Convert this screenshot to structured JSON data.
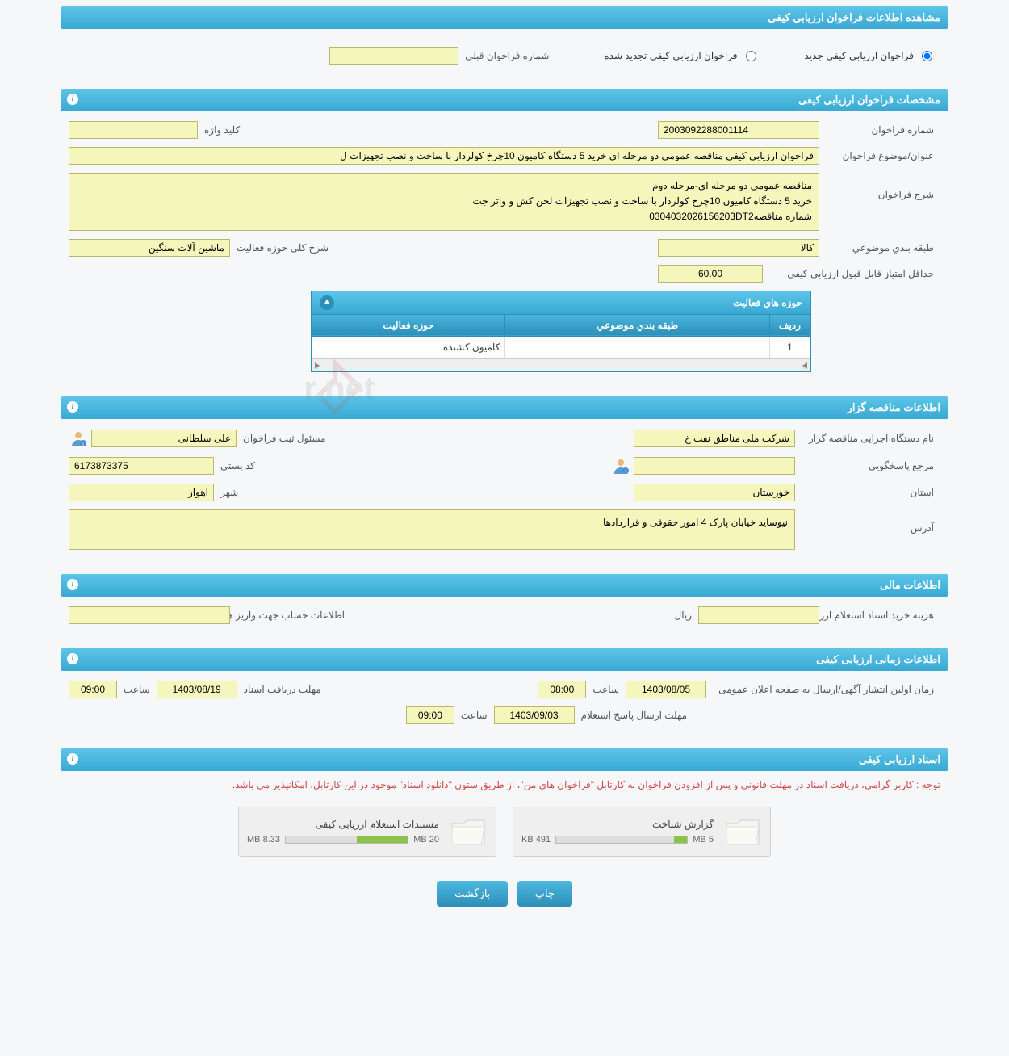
{
  "page_title": "مشاهده اطلاعات فراخوان ارزیابی کیفی",
  "radio_options": {
    "new": "فراخوان ارزیابی کیفی جدید",
    "renewed": "فراخوان ارزیابی کیفی تجدید شده",
    "previous_label": "شماره فراخوان قبلی",
    "previous_value": ""
  },
  "specs": {
    "header": "مشخصات فراخوان ارزیابی کیفی",
    "number_label": "شماره فراخوان",
    "number": "2003092288001114",
    "keyword_label": "کلید واژه",
    "keyword": "",
    "title_label": "عنوان/موضوع فراخوان",
    "title": "فراخوان ارزيابي كيفي مناقصه عمومي دو مرحله اي خريد 5 دستگاه كاميون 10چرخ كولردار با ساخت و نصب تجهيزات ل",
    "desc_label": "شرح فراخوان",
    "desc": "مناقصه عمومي دو مرحله اي-مرحله دوم\nخريد 5 دستگاه كاميون 10چرخ كولردار با ساخت و نصب تجهيزات لجن كش و واتر جت\nشماره مناقصه0304032026156203DT2",
    "category_label": "طبقه بندي موضوعي",
    "category": "کالا",
    "activity_scope_label": "شرح کلی حوزه فعالیت",
    "activity_scope": "ماشین آلات سنگین",
    "min_score_label": "حداقل امتیاز قابل قبول ارزیابی کیفی",
    "min_score": "60.00"
  },
  "activity_table": {
    "header": "حوزه هاي فعاليت",
    "columns": {
      "row": "ردیف",
      "category": "طبقه بندي موضوعي",
      "activity": "حوزه فعاليت"
    },
    "rows": [
      {
        "num": "1",
        "category": "",
        "activity": "كاميون كشنده"
      }
    ]
  },
  "organizer": {
    "header": "اطلاعات مناقصه گزار",
    "org_label": "نام دستگاه اجرایی مناقصه گزار",
    "org": "شرکت ملی مناطق نفت خ",
    "registrar_label": "مسئول ثبت فراخوان",
    "registrar": "علی سلطانی",
    "responder_label": "مرجع پاسخگويي",
    "responder": "",
    "postal_label": "کد پستي",
    "postal": "6173873375",
    "province_label": "استان",
    "province": "خوزستان",
    "city_label": "شهر",
    "city": "اهواز",
    "address_label": "آدرس",
    "address": "نیوساید خیابان پارک 4 امور حقوقی و قراردادها"
  },
  "financial": {
    "header": "اطلاعات مالی",
    "cost_label": "هزینه خرید اسناد استعلام ارزیابی کیفی",
    "cost": "",
    "currency": "ريال",
    "account_label": "اطلاعات حساب جهت واریز هزینه خرید اسناد",
    "account": ""
  },
  "timing": {
    "header": "اطلاعات زمانی ارزیابی کیفی",
    "publish_label": "زمان اولین انتشار آگهی/ارسال به صفحه اعلان عمومی",
    "publish_date": "1403/08/05",
    "publish_time": "08:00",
    "receive_label": "مهلت دریافت اسناد",
    "receive_date": "1403/08/19",
    "receive_time": "09:00",
    "respond_label": "مهلت ارسال پاسخ استعلام",
    "respond_date": "1403/09/03",
    "respond_time": "09:00",
    "hour_label": "ساعت"
  },
  "documents": {
    "header": "اسناد ارزیابی کیفی",
    "notice": "توجه : کاربر گرامی، دریافت اسناد در مهلت قانونی و پس از افزودن فراخوان به کارتابل \"فراخوان های من\"، از طریق ستون \"دانلود اسناد\" موجود در این کارتابل، امکانپذیر می باشد.",
    "items": [
      {
        "title": "گزارش شناخت",
        "used": "491 KB",
        "total": "5 MB",
        "fill_pct": 10
      },
      {
        "title": "مستندات استعلام ارزیابی کیفی",
        "used": "8.33 MB",
        "total": "20 MB",
        "fill_pct": 42
      }
    ]
  },
  "buttons": {
    "print": "چاپ",
    "back": "بازگشت"
  },
  "watermark": "AriaTender.net",
  "colors": {
    "header_grad_top": "#5cc5e8",
    "header_grad_bot": "#3aa8d4",
    "field_bg": "#f5f6bc",
    "field_border": "#b8b86a",
    "btn_grad_top": "#4db8e0",
    "btn_grad_bot": "#2c8fb8",
    "notice_color": "#d04848",
    "progress_fill": "#8bc34a"
  }
}
